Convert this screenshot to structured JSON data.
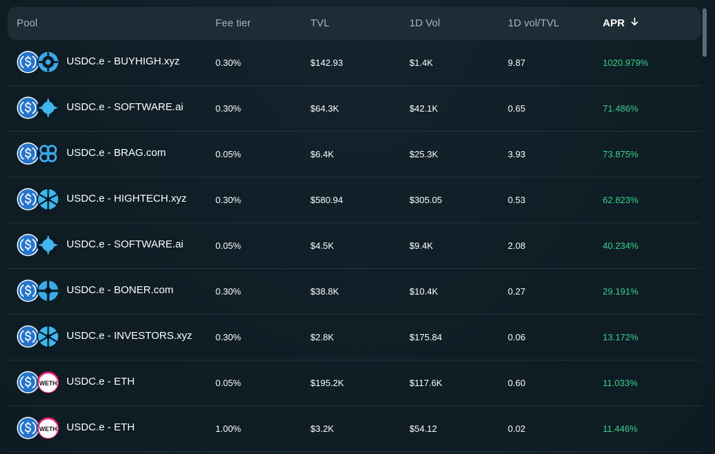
{
  "columns": {
    "pool": "Pool",
    "fee": "Fee tier",
    "tvl": "TVL",
    "vol": "1D Vol",
    "voltvl": "1D vol/TVL",
    "apr": "APR",
    "apr_sort_icon": "arrow-down-icon"
  },
  "rows": [
    {
      "pool": "USDC.e - BUYHIGH.xyz",
      "fee": "0.30%",
      "tvl": "$142.93",
      "vol": "$1.4K",
      "voltvl": "9.87",
      "apr": "1020.979%",
      "token_icon": "ring-token-icon",
      "token_color": "#3aa9e8"
    },
    {
      "pool": "USDC.e - SOFTWARE.ai",
      "fee": "0.30%",
      "tvl": "$64.3K",
      "vol": "$42.1K",
      "voltvl": "0.65",
      "apr": "71.486%",
      "token_icon": "burst-token-icon",
      "token_color": "#3fb6ec"
    },
    {
      "pool": "USDC.e - BRAG.com",
      "fee": "0.05%",
      "tvl": "$6.4K",
      "vol": "$25.3K",
      "voltvl": "3.93",
      "apr": "73.875%",
      "token_icon": "quad-token-icon",
      "token_color": "#3aa9e8"
    },
    {
      "pool": "USDC.e - HIGHTECH.xyz",
      "fee": "0.30%",
      "tvl": "$580.94",
      "vol": "$305.05",
      "voltvl": "0.53",
      "apr": "62.823%",
      "token_icon": "pinwheel-token-icon",
      "token_color": "#3fb6ec"
    },
    {
      "pool": "USDC.e - SOFTWARE.ai",
      "fee": "0.05%",
      "tvl": "$4.5K",
      "vol": "$9.4K",
      "voltvl": "2.08",
      "apr": "40.234%",
      "token_icon": "burst-token-icon",
      "token_color": "#3fb6ec"
    },
    {
      "pool": "USDC.e - BONER.com",
      "fee": "0.30%",
      "tvl": "$38.8K",
      "vol": "$10.4K",
      "voltvl": "0.27",
      "apr": "29.191%",
      "token_icon": "cross-token-icon",
      "token_color": "#3aa9e8"
    },
    {
      "pool": "USDC.e - INVESTORS.xyz",
      "fee": "0.30%",
      "tvl": "$2.8K",
      "vol": "$175.84",
      "voltvl": "0.06",
      "apr": "13.172%",
      "token_icon": "pinwheel-token-icon",
      "token_color": "#3fb6ec"
    },
    {
      "pool": "USDC.e - ETH",
      "fee": "0.05%",
      "tvl": "$195.2K",
      "vol": "$117.6K",
      "voltvl": "0.60",
      "apr": "11.033%",
      "token_icon": "weth-token-icon",
      "token_label": "WETH",
      "token_color": "#ffffff"
    },
    {
      "pool": "USDC.e - ETH",
      "fee": "1.00%",
      "tvl": "$3.2K",
      "vol": "$54.12",
      "voltvl": "0.02",
      "apr": "11.446%",
      "token_icon": "weth-token-icon",
      "token_label": "WETH",
      "token_color": "#ffffff"
    }
  ],
  "colors": {
    "usdc_blue": "#2775ca",
    "apr_green": "#3ad38c",
    "header_bg": "#1e2c35"
  }
}
